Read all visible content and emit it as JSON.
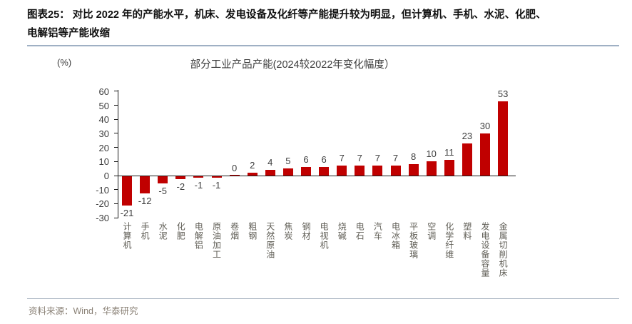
{
  "header": {
    "line1": "图表25：  对比 2022 年的产能水平，机床、发电设备及化纤等产能提升较为明显，但计算机、手机、水泥、化肥、",
    "line2": "电解铝等产能收缩"
  },
  "chart": {
    "title": "部分工业产品产能(2024较2022年变化幅度）",
    "unit_label": "(%)"
  },
  "chart_data": {
    "type": "bar",
    "title": "部分工业产品产能(2024较2022年变化幅度）",
    "categories": [
      "计算机",
      "手机",
      "水泥",
      "化肥",
      "电解铝",
      "原油加工",
      "卷烟",
      "粗钢",
      "天然原油",
      "焦炭",
      "钢材",
      "电视机",
      "烧碱",
      "电石",
      "汽车",
      "电冰箱",
      "平板玻璃",
      "空调",
      "化学纤维",
      "塑料",
      "发电设备容量",
      "金属切削机床"
    ],
    "values": [
      -21,
      -12,
      -5,
      -2,
      -1,
      -1,
      0,
      2,
      4,
      5,
      6,
      6,
      7,
      7,
      7,
      7,
      8,
      10,
      11,
      23,
      30,
      53
    ],
    "xlabel": "",
    "ylabel": "(%)",
    "ylim": [
      -30,
      60
    ],
    "y_ticks": [
      60,
      50,
      40,
      30,
      20,
      10,
      0,
      -10,
      -20,
      -30
    ],
    "grid": false,
    "legend": "none",
    "data_labels": true,
    "bar_color": "#c00000"
  },
  "footer": {
    "source": "资料来源：Wind，华泰研究"
  },
  "colors": {
    "bar": "#c00000",
    "caption_text": "#111111",
    "rule_line": "#9fb0c4",
    "axis_text": "#3d3d3d",
    "category_text": "#5f5d55",
    "source_text": "#8a8176"
  }
}
